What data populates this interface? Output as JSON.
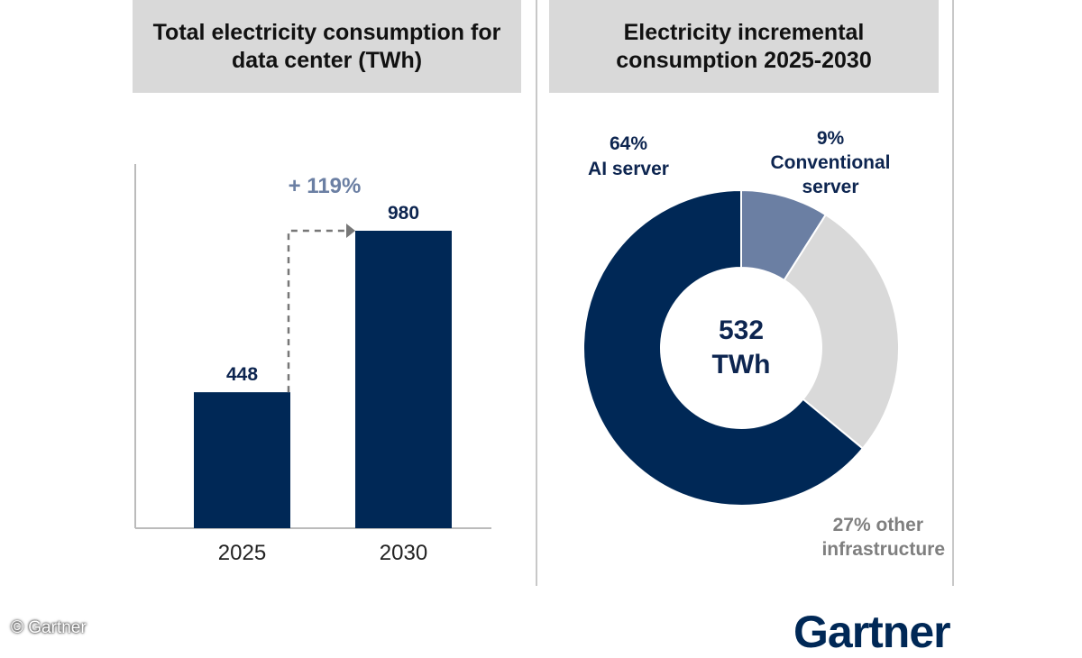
{
  "chart_data": [
    {
      "type": "bar",
      "title": "Total electricity consumption for data center (TWh)",
      "categories": [
        "2025",
        "2030"
      ],
      "values": [
        448,
        980
      ],
      "value_labels": [
        "448",
        "980"
      ],
      "annotation": "+ 119%",
      "color": "#002856",
      "ylim": [
        0,
        1080
      ]
    },
    {
      "type": "pie",
      "subtype": "donut",
      "title": "Electricity incremental consumption 2025-2030",
      "center_label": [
        "532",
        "TWh"
      ],
      "slices": [
        {
          "name": "Conventional server",
          "value": 9,
          "label_pct": "9%",
          "label_lines": [
            "Conventional",
            "server"
          ],
          "color": "#6b7fa3"
        },
        {
          "name": "other infrastructure",
          "value": 27,
          "label_pct": "27% other",
          "label_lines": [
            "infrastructure"
          ],
          "color": "#d9d9d9"
        },
        {
          "name": "AI server",
          "value": 64,
          "label_pct": "64%",
          "label_lines": [
            "AI server"
          ],
          "color": "#002856"
        }
      ]
    }
  ],
  "footer": {
    "copyright": "© Gartner",
    "logo": "Gartner"
  }
}
